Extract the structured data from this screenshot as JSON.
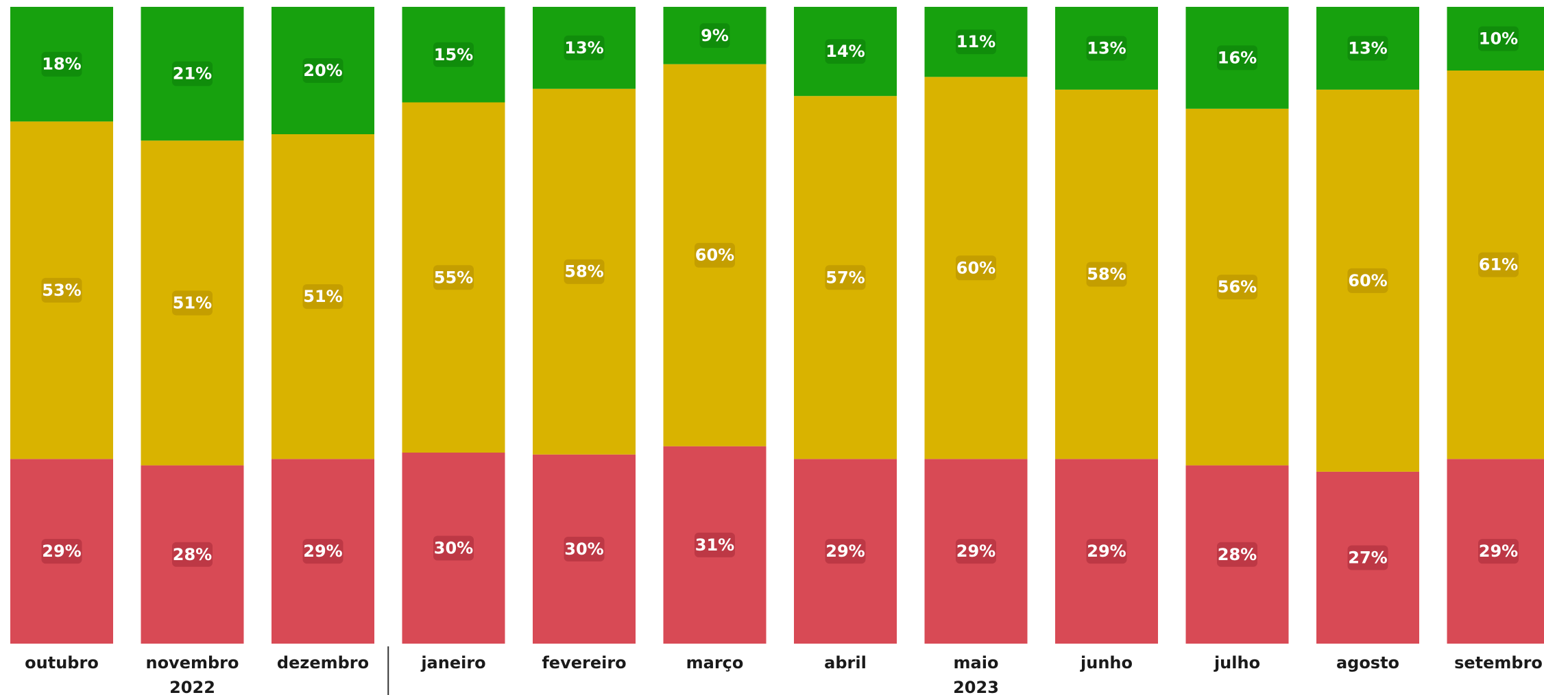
{
  "chart_data": {
    "type": "bar",
    "stacked": true,
    "normalized": true,
    "categories": [
      "outubro",
      "novembro",
      "dezembro",
      "janeiro",
      "fevereiro",
      "março",
      "abril",
      "maio",
      "junho",
      "julho",
      "agosto",
      "setembro"
    ],
    "year_labels": [
      {
        "category": "novembro",
        "label": "2022"
      },
      {
        "category": "maio",
        "label": "2023"
      }
    ],
    "year_divider_after": "dezembro",
    "series": [
      {
        "color": "#d84a55",
        "values": [
          29,
          28,
          29,
          30,
          30,
          31,
          29,
          29,
          29,
          28,
          27,
          29
        ],
        "labels": [
          "29%",
          "28%",
          "29%",
          "30%",
          "30%",
          "31%",
          "29%",
          "29%",
          "29%",
          "28%",
          "27%",
          "29%"
        ]
      },
      {
        "color": "#d9b300",
        "values": [
          53,
          51,
          51,
          55,
          58,
          60,
          57,
          60,
          58,
          56,
          60,
          61
        ],
        "labels": [
          "53%",
          "51%",
          "51%",
          "55%",
          "58%",
          "60%",
          "57%",
          "60%",
          "58%",
          "56%",
          "60%",
          "61%"
        ]
      },
      {
        "color": "#17a10e",
        "values": [
          18,
          21,
          20,
          15,
          13,
          9,
          14,
          11,
          13,
          16,
          13,
          10
        ],
        "labels": [
          "18%",
          "21%",
          "20%",
          "15%",
          "13%",
          "9%",
          "14%",
          "11%",
          "13%",
          "16%",
          "13%",
          "10%"
        ]
      }
    ],
    "ylim": [
      0,
      100
    ],
    "grid": false,
    "legend": "none"
  }
}
